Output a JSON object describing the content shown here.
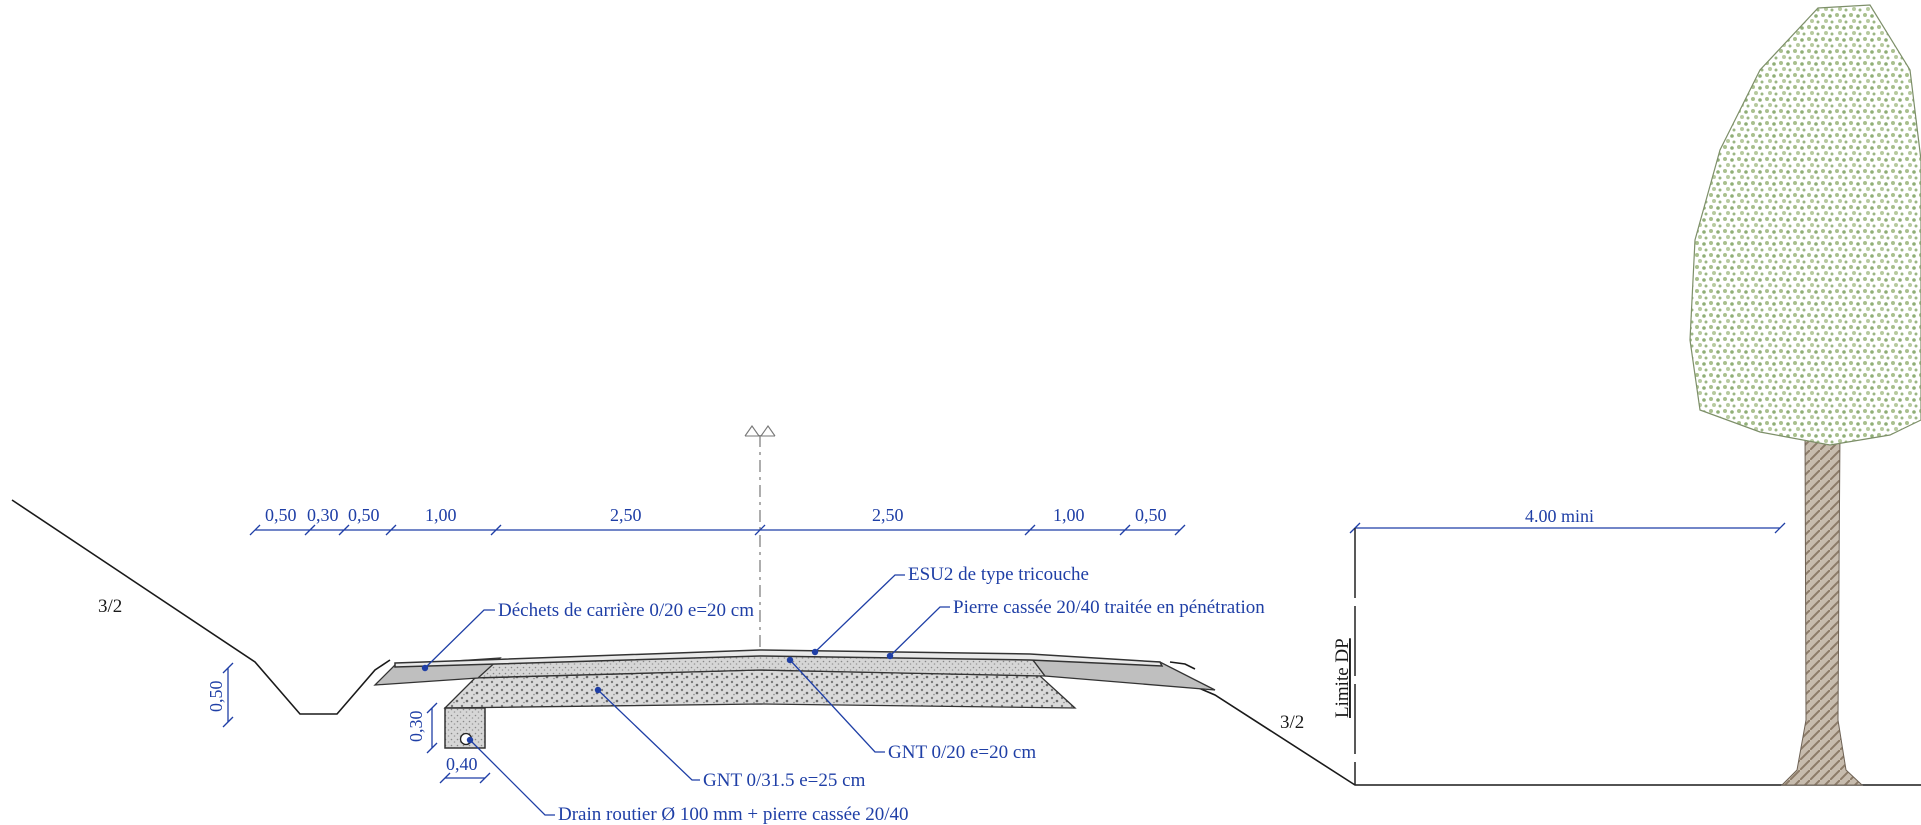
{
  "dimensions_top": [
    "0,50",
    "0,30",
    "0,50",
    "1,00",
    "2,50",
    "2,50",
    "1,00",
    "0,50"
  ],
  "dimension_right": "4.00 mini",
  "dimension_ditch_depth": "0,50",
  "dimension_drain_height": "0,30",
  "dimension_drain_width": "0,40",
  "slope_left": "3/2",
  "slope_right": "3/2",
  "limit_label": "Limite DP",
  "layers": {
    "esu2": "ESU2 de type tricouche",
    "quarry_waste": "Déchets de carrière 0/20 e=20 cm",
    "broken_stone": "Pierre cassée 20/40 traitée en pénétration",
    "gnt_020": "GNT 0/20 e=20 cm",
    "gnt_0315": "GNT 0/31.5 e=25 cm",
    "drain": "Drain routier Ø 100 mm + pierre cassée 20/40"
  },
  "colors": {
    "annotation": "#1f3fa6",
    "ground": "#1a1a1a",
    "foliage": "#a9c08e",
    "trunk": "#a89a86"
  }
}
